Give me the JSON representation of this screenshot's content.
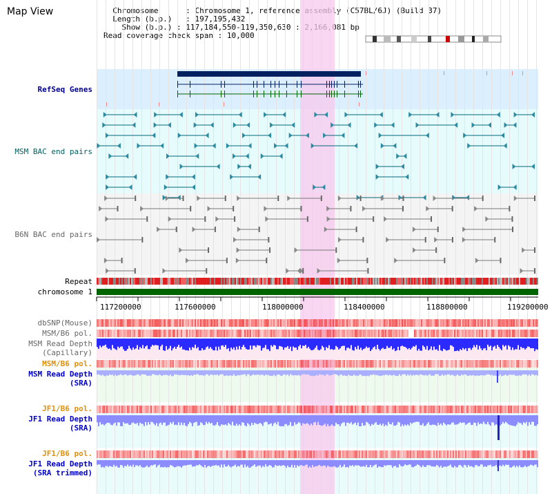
{
  "panel_title": "Map View",
  "info": {
    "chromosome_key": "Chromosome",
    "chromosome_value": "Chromosome 1, reference assembly (C57BL/6J) (Build 37)",
    "length_key": "Length (b.p.)",
    "length_value": "197,195,432",
    "show_key": "Show (b.p.)",
    "show_value": "117,184,550-119,350,630 : 2,166,081 bp",
    "coverage_key": "Read coverage check span",
    "coverage_value": "10,000"
  },
  "tracks": {
    "refseq": "RefSeq Genes",
    "msm_bac": "MSM BAC end pairs",
    "b6n_bac": "B6N BAC end pairs",
    "repeat": "Repeat",
    "chromosome": "chromosome 1",
    "dbsnp": "dbSNP(Mouse)",
    "msm_b6_pol_1": "MSM/B6 pol.",
    "msm_depth_cap_1": "MSM Read Depth",
    "msm_depth_cap_2": "(Capillary)",
    "msm_b6_pol_2": "MSM/B6 pol.",
    "msm_depth_sra_1": "MSM Read Depth",
    "msm_depth_sra_2": "(SRA)",
    "jf1_b6_pol_1": "JF1/B6 pol.",
    "jf1_depth_sra_1": "JF1 Read Depth",
    "jf1_depth_sra_2": "(SRA)",
    "jf1_b6_pol_2": "JF1/B6 pol.",
    "jf1_depth_trim_1": "JF1 Read Depth",
    "jf1_depth_trim_2": "(SRA trimmed)"
  },
  "axis_ticks": [
    "117200000",
    "117600000",
    "118000000",
    "118400000",
    "118800000",
    "119200000"
  ],
  "colors": {
    "highlight": "#f7c9ee",
    "refseq_bg": "#dcefff",
    "msm_bg": "#e6fbfb",
    "b6n_bg": "#f4f4f4",
    "gene_bar": "#002060",
    "chromosome_bar": "#006400",
    "snp": "#ff4d4d",
    "depth_blue": "#2b2bff",
    "depth_periwinkle": "#8c8cff",
    "msm_feature": "#006878",
    "b6n_feature": "#777777"
  }
}
